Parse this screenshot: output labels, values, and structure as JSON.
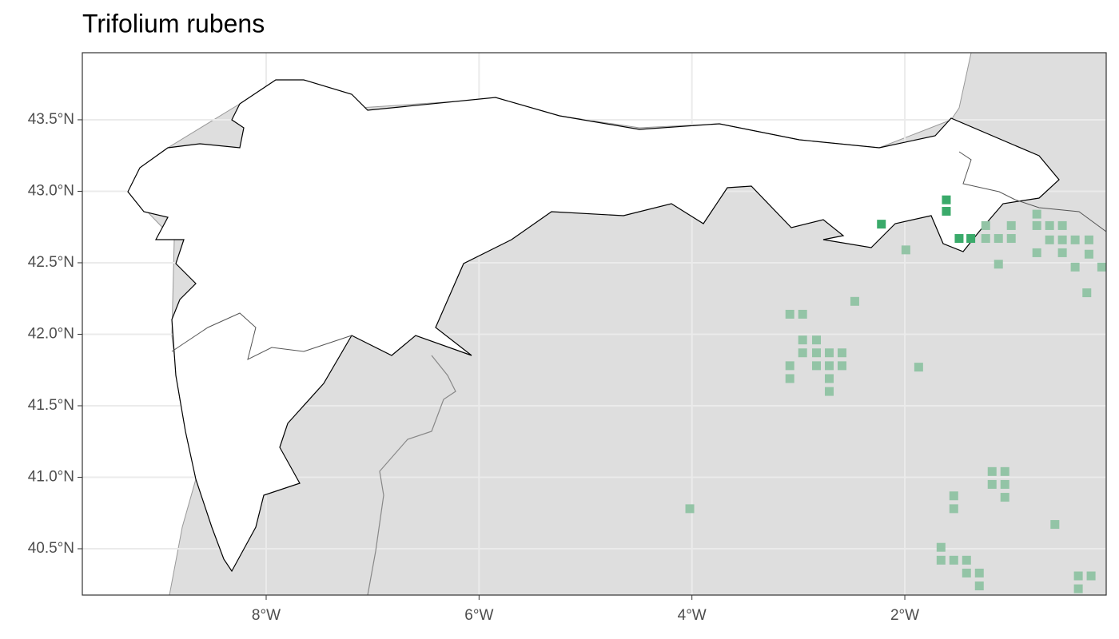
{
  "chart_data": {
    "type": "scatter",
    "title": "Trifolium rubens",
    "xlim": [
      -9.727,
      -0.108
    ],
    "ylim": [
      40.176,
      43.969
    ],
    "xticks": [
      {
        "value": -8,
        "label": "8°W"
      },
      {
        "value": -6,
        "label": "6°W"
      },
      {
        "value": -4,
        "label": "4°W"
      },
      {
        "value": -2,
        "label": "2°W"
      }
    ],
    "yticks": [
      {
        "value": 40.5,
        "label": "40.5°N"
      },
      {
        "value": 41.0,
        "label": "41.0°N"
      },
      {
        "value": 41.5,
        "label": "41.5°N"
      },
      {
        "value": 42.0,
        "label": "42.0°N"
      },
      {
        "value": 42.5,
        "label": "42.5°N"
      },
      {
        "value": 43.0,
        "label": "43.0°N"
      },
      {
        "value": 43.5,
        "label": "43.5°N"
      }
    ],
    "grid": true,
    "series": [
      {
        "color": "#3aaa6a",
        "x": [
          -1.61,
          -1.61,
          -2.22,
          -1.49,
          -1.38
        ],
        "values": [
          42.94,
          42.86,
          42.77,
          42.67,
          42.67
        ]
      },
      {
        "color": "#93c4a6",
        "x": [
          -1.99,
          -2.47,
          -3.08,
          -2.96,
          -2.96,
          -2.83,
          -2.96,
          -2.83,
          -2.71,
          -2.59,
          -3.08,
          -2.83,
          -2.71,
          -2.59,
          -3.08,
          -2.71,
          -2.71,
          -1.87,
          -4.02,
          -1.24,
          -1.0,
          -0.76,
          -0.76,
          -0.64,
          -0.52,
          -1.24,
          -1.12,
          -1.0,
          -0.64,
          -0.52,
          -0.4,
          -0.27,
          -0.76,
          -0.52,
          -0.27,
          -1.12,
          -0.4,
          -0.15,
          -0.29,
          -1.18,
          -1.06,
          -1.18,
          -1.06,
          -1.06,
          -1.54,
          -1.54,
          -0.59,
          -1.66,
          -1.66,
          -1.54,
          -1.42,
          -1.42,
          -1.3,
          -1.3,
          -0.37,
          -0.25,
          -0.37
        ],
        "values": [
          42.59,
          42.23,
          42.14,
          42.14,
          41.96,
          41.96,
          41.87,
          41.87,
          41.87,
          41.87,
          41.78,
          41.78,
          41.78,
          41.78,
          41.69,
          41.69,
          41.6,
          41.77,
          40.78,
          42.76,
          42.76,
          42.84,
          42.76,
          42.76,
          42.76,
          42.67,
          42.67,
          42.67,
          42.66,
          42.66,
          42.66,
          42.66,
          42.57,
          42.57,
          42.56,
          42.49,
          42.47,
          42.47,
          42.29,
          41.04,
          41.04,
          40.95,
          40.95,
          40.86,
          40.87,
          40.78,
          40.67,
          40.51,
          40.42,
          40.42,
          40.42,
          40.33,
          40.33,
          40.24,
          40.31,
          40.31,
          40.22
        ]
      }
    ]
  }
}
